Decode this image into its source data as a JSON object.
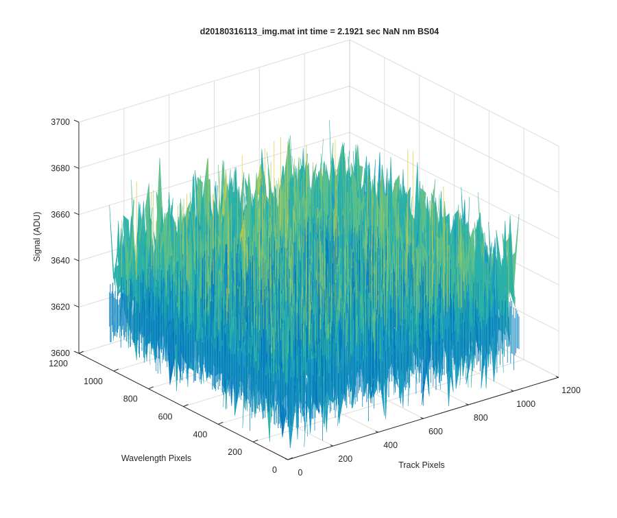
{
  "chart_data": {
    "type": "surface",
    "title": "d20180316113_img.mat int time = 2.1921 sec  NaN nm BS04",
    "xlabel": "Track Pixels",
    "ylabel": "Wavelength Pixels",
    "zlabel": "Signal (ADU)",
    "xlim": [
      0,
      1200
    ],
    "ylim": [
      0,
      1200
    ],
    "zlim": [
      3600,
      3700
    ],
    "x_ticks": [
      0,
      200,
      400,
      600,
      800,
      1000,
      1200
    ],
    "y_ticks": [
      0,
      200,
      400,
      600,
      800,
      1000,
      1200
    ],
    "z_ticks": [
      3600,
      3620,
      3640,
      3660,
      3680,
      3700
    ],
    "x_tick_labels": [
      "0",
      "200",
      "400",
      "600",
      "800",
      "1000",
      "1200"
    ],
    "y_tick_labels": [
      "0",
      "200",
      "400",
      "600",
      "800",
      "1000",
      "1200"
    ],
    "z_tick_labels": [
      "3600",
      "3620",
      "3640",
      "3660",
      "3680",
      "3700"
    ],
    "data_extent": {
      "x": [
        0,
        1024
      ],
      "y": [
        0,
        1024
      ]
    },
    "signal_mean": 3640,
    "signal_spread": [
      3610,
      3690
    ],
    "grid": true,
    "colormap": [
      "#0072bd",
      "#1a9bbf",
      "#2ab0a8",
      "#5cbf8a",
      "#a9c85e",
      "#e3c53a"
    ]
  }
}
